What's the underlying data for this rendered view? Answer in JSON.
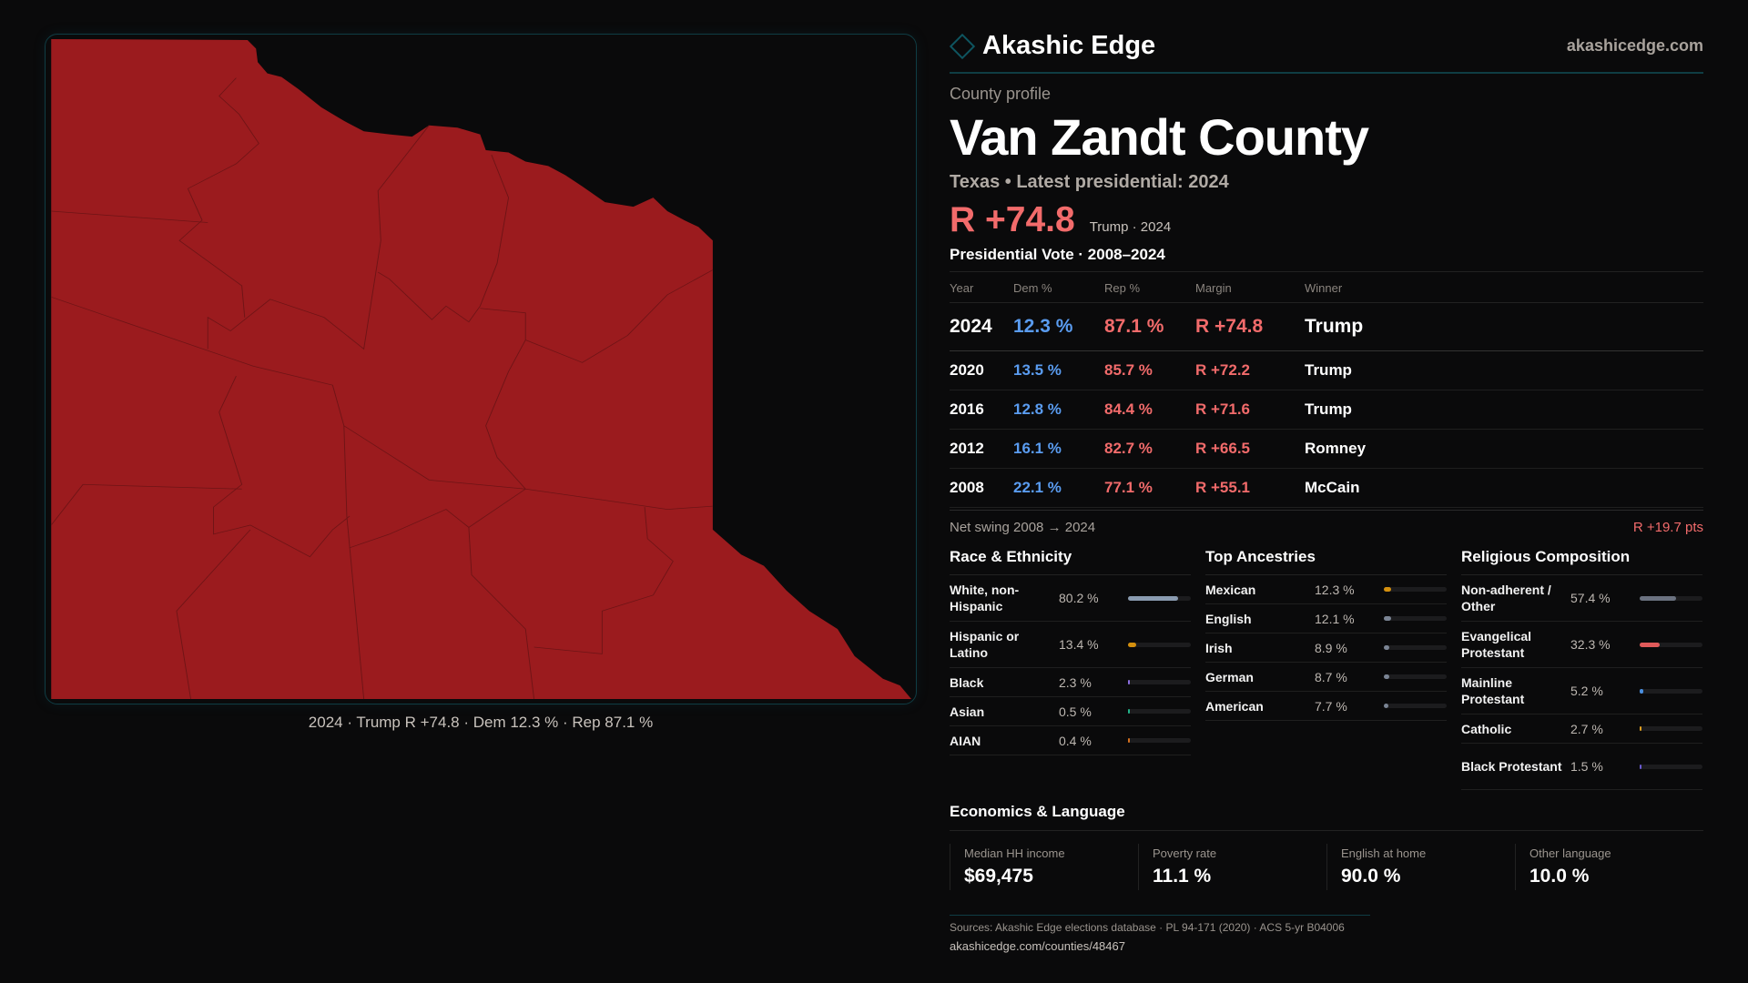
{
  "brand": {
    "name": "Akashic Edge",
    "site": "akashicedge.com"
  },
  "profile": {
    "kicker": "County profile",
    "title": "Van Zandt County",
    "subtitle": "Texas • Latest presidential: 2024",
    "margin": "R +74.8",
    "margin_note": "Trump · 2024"
  },
  "map": {
    "caption": "2024 · Trump R +74.8 · Dem 12.3 % · Rep 87.1 %",
    "fill_color": "#9b1b1e"
  },
  "votes": {
    "title": "Presidential Vote · 2008–2024",
    "headers": [
      "Year",
      "Dem %",
      "Rep %",
      "Margin",
      "Winner"
    ],
    "rows": [
      {
        "year": "2024",
        "dem": "12.3 %",
        "rep": "87.1 %",
        "margin": "R +74.8",
        "winner": "Trump"
      },
      {
        "year": "2020",
        "dem": "13.5 %",
        "rep": "85.7 %",
        "margin": "R +72.2",
        "winner": "Trump"
      },
      {
        "year": "2016",
        "dem": "12.8 %",
        "rep": "84.4 %",
        "margin": "R +71.6",
        "winner": "Trump"
      },
      {
        "year": "2012",
        "dem": "16.1 %",
        "rep": "82.7 %",
        "margin": "R +66.5",
        "winner": "Romney"
      },
      {
        "year": "2008",
        "dem": "22.1 %",
        "rep": "77.1 %",
        "margin": "R +55.1",
        "winner": "McCain"
      }
    ],
    "swing_label": "Net swing 2008 → 2024",
    "swing_value": "R +19.7 pts"
  },
  "race": {
    "title": "Race & Ethnicity",
    "items": [
      {
        "label": "White, non-Hispanic",
        "value": "80.2 %",
        "pct": 80.2,
        "color": "#8a9bb0"
      },
      {
        "label": "Hispanic or Latino",
        "value": "13.4 %",
        "pct": 13.4,
        "color": "#d4900e"
      },
      {
        "label": "Black",
        "value": "2.3 %",
        "pct": 2.3,
        "color": "#8b6fe0"
      },
      {
        "label": "Asian",
        "value": "0.5 %",
        "pct": 0.5,
        "color": "#22b38a"
      },
      {
        "label": "AIAN",
        "value": "0.4 %",
        "pct": 0.4,
        "color": "#d4701e"
      }
    ]
  },
  "ancestry": {
    "title": "Top Ancestries",
    "items": [
      {
        "label": "Mexican",
        "value": "12.3 %",
        "pct": 12.3,
        "color": "#d4900e"
      },
      {
        "label": "English",
        "value": "12.1 %",
        "pct": 12.1,
        "color": "#7a8494"
      },
      {
        "label": "Irish",
        "value": "8.9 %",
        "pct": 8.9,
        "color": "#7a8494"
      },
      {
        "label": "German",
        "value": "8.7 %",
        "pct": 8.7,
        "color": "#7a8494"
      },
      {
        "label": "American",
        "value": "7.7 %",
        "pct": 7.7,
        "color": "#7a8494"
      }
    ]
  },
  "religion": {
    "title": "Religious Composition",
    "items": [
      {
        "label": "Non-adherent / Other",
        "value": "57.4 %",
        "pct": 57.4,
        "color": "#6b7280"
      },
      {
        "label": "Evangelical Protestant",
        "value": "32.3 %",
        "pct": 32.3,
        "color": "#e05a5a"
      },
      {
        "label": "Mainline Protestant",
        "value": "5.2 %",
        "pct": 5.2,
        "color": "#4a8fe0"
      },
      {
        "label": "Catholic",
        "value": "2.7 %",
        "pct": 2.7,
        "color": "#e0a020"
      },
      {
        "label": "Black Protestant",
        "value": "1.5 %",
        "pct": 1.5,
        "color": "#6a5ad0"
      }
    ]
  },
  "economics": {
    "title": "Economics & Language",
    "stats": [
      {
        "label": "Median HH income",
        "value": "$69,475"
      },
      {
        "label": "Poverty rate",
        "value": "11.1 %"
      },
      {
        "label": "English at home",
        "value": "90.0 %"
      },
      {
        "label": "Other language",
        "value": "10.0 %"
      }
    ]
  },
  "footer": {
    "sources": "Sources: Akashic Edge elections database · PL 94-171 (2020) · ACS 5-yr B04006",
    "url": "akashicedge.com/counties/48467"
  }
}
